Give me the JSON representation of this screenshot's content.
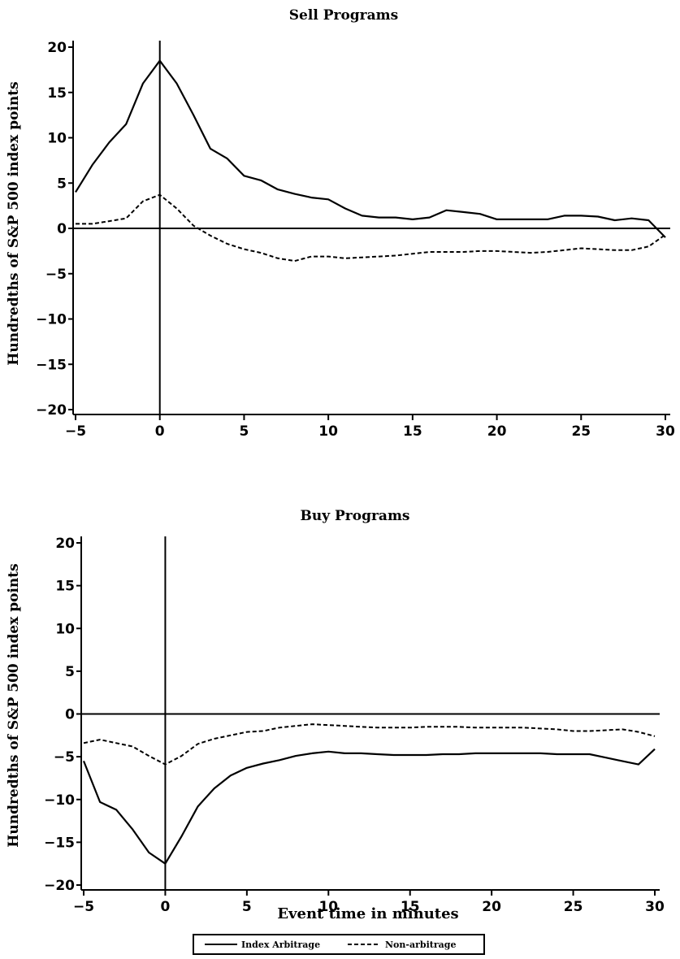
{
  "chart_data": [
    {
      "type": "line",
      "title": "Sell Programs",
      "xlabel": "",
      "ylabel": "Hundredths of S&P 500 index points",
      "xlim": [
        -5,
        30
      ],
      "ylim": [
        -20,
        20
      ],
      "xticks": [
        -5,
        0,
        5,
        10,
        15,
        20,
        25,
        30
      ],
      "yticks": [
        -20,
        -15,
        -10,
        -5,
        0,
        5,
        10,
        15,
        20
      ],
      "x": [
        -5,
        -4,
        -3,
        -2,
        -1,
        0,
        1,
        2,
        3,
        4,
        5,
        6,
        7,
        8,
        9,
        10,
        11,
        12,
        13,
        14,
        15,
        16,
        17,
        18,
        19,
        20,
        21,
        22,
        23,
        24,
        25,
        26,
        27,
        28,
        29,
        30
      ],
      "series": [
        {
          "name": "Index Arbitrage",
          "style": "solid",
          "values": [
            4,
            7,
            9.5,
            11.5,
            16,
            18.5,
            16,
            12.5,
            8.8,
            7.7,
            5.8,
            5.3,
            4.3,
            3.8,
            3.4,
            3.2,
            2.2,
            1.4,
            1.2,
            1.2,
            1,
            1.2,
            2,
            1.8,
            1.6,
            1,
            1,
            1,
            1,
            1.4,
            1.4,
            1.3,
            0.9,
            1.1,
            0.9,
            -1
          ]
        },
        {
          "name": "Non-arbitrage",
          "style": "dashed",
          "values": [
            0.5,
            0.5,
            0.8,
            1.1,
            3,
            3.7,
            2.2,
            0.3,
            -0.8,
            -1.7,
            -2.3,
            -2.7,
            -3.3,
            -3.6,
            -3.1,
            -3.1,
            -3.3,
            -3.2,
            -3.1,
            -3,
            -2.8,
            -2.6,
            -2.6,
            -2.6,
            -2.5,
            -2.5,
            -2.6,
            -2.7,
            -2.6,
            -2.4,
            -2.2,
            -2.3,
            -2.4,
            -2.4,
            -2,
            -0.7
          ]
        }
      ]
    },
    {
      "type": "line",
      "title": "Buy Programs",
      "xlabel": "Event time in minutes",
      "ylabel": "Hundredths of S&P 500 index points",
      "xlim": [
        -5,
        30
      ],
      "ylim": [
        -20,
        20
      ],
      "xticks": [
        -5,
        0,
        5,
        10,
        15,
        20,
        25,
        30
      ],
      "yticks": [
        -20,
        -15,
        -10,
        -5,
        0,
        5,
        10,
        15,
        20
      ],
      "x": [
        -5,
        -4,
        -3,
        -2,
        -1,
        0,
        1,
        2,
        3,
        4,
        5,
        6,
        7,
        8,
        9,
        10,
        11,
        12,
        13,
        14,
        15,
        16,
        17,
        18,
        19,
        20,
        21,
        22,
        23,
        24,
        25,
        26,
        27,
        28,
        29,
        30
      ],
      "series": [
        {
          "name": "Index Arbitrage",
          "style": "solid",
          "values": [
            -5.5,
            -10.3,
            -11.2,
            -13.5,
            -16.2,
            -17.5,
            -14.3,
            -10.8,
            -8.7,
            -7.2,
            -6.3,
            -5.8,
            -5.4,
            -4.9,
            -4.6,
            -4.4,
            -4.6,
            -4.6,
            -4.7,
            -4.8,
            -4.8,
            -4.8,
            -4.7,
            -4.7,
            -4.6,
            -4.6,
            -4.6,
            -4.6,
            -4.6,
            -4.7,
            -4.7,
            -4.7,
            -5.1,
            -5.5,
            -5.9,
            -4.1
          ]
        },
        {
          "name": "Non-arbitrage",
          "style": "dashed",
          "values": [
            -3.4,
            -3,
            -3.4,
            -3.8,
            -4.9,
            -5.9,
            -4.9,
            -3.5,
            -2.9,
            -2.5,
            -2.1,
            -2,
            -1.6,
            -1.4,
            -1.2,
            -1.3,
            -1.4,
            -1.5,
            -1.6,
            -1.6,
            -1.6,
            -1.5,
            -1.5,
            -1.5,
            -1.6,
            -1.6,
            -1.6,
            -1.6,
            -1.7,
            -1.8,
            -2,
            -2,
            -1.9,
            -1.8,
            -2.1,
            -2.6
          ]
        }
      ]
    }
  ],
  "legend": {
    "items": [
      {
        "label": "Index Arbitrage",
        "style": "solid"
      },
      {
        "label": "Non-arbitrage",
        "style": "dashed"
      }
    ]
  }
}
